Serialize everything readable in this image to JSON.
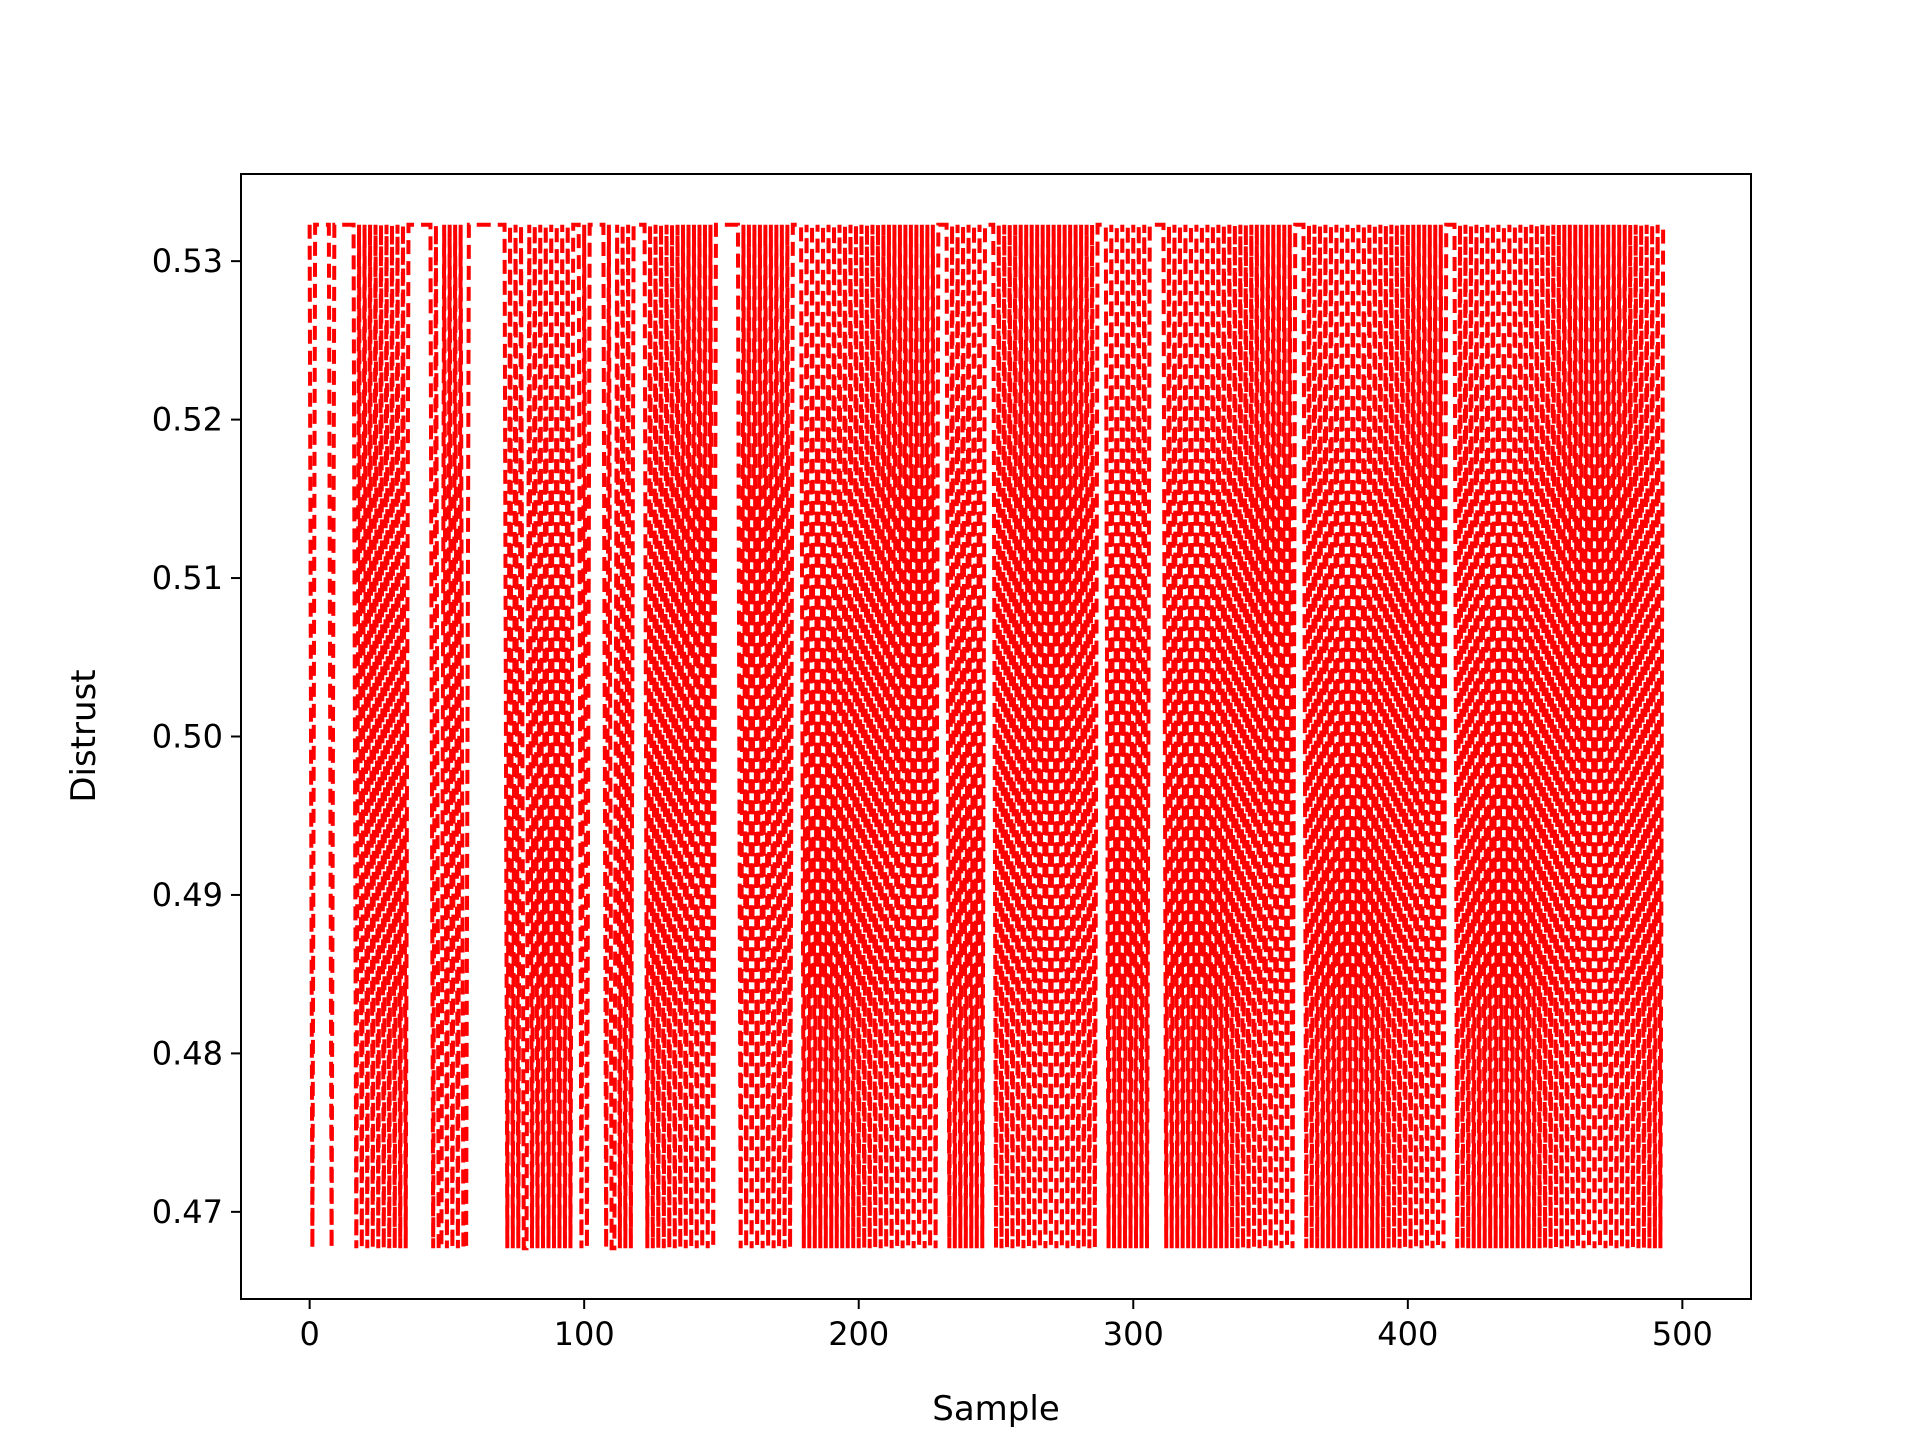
{
  "chart_data": {
    "type": "line",
    "title": "",
    "xlabel": "Sample",
    "ylabel": "Distrust",
    "xlim": [
      -25,
      525
    ],
    "ylim": [
      0.4645,
      0.5355
    ],
    "x_ticks": [
      0,
      100,
      200,
      300,
      400,
      500
    ],
    "x_tick_labels": [
      "0",
      "100",
      "200",
      "300",
      "400",
      "500"
    ],
    "y_ticks": [
      0.47,
      0.48,
      0.49,
      0.5,
      0.51,
      0.52,
      0.53
    ],
    "y_tick_labels": [
      "0.47",
      "0.48",
      "0.49",
      "0.50",
      "0.51",
      "0.52",
      "0.53"
    ],
    "grid": false,
    "legend": "none",
    "line_style": "dashed",
    "series": [
      {
        "color": "#ff0000",
        "x_start": 0,
        "x_step": 1,
        "low_value": 0.4677,
        "high_value": 0.5323,
        "states": [
          1,
          0,
          1,
          1,
          1,
          1,
          1,
          1,
          0,
          1,
          1,
          1,
          1,
          1,
          1,
          1,
          1,
          0,
          1,
          0,
          1,
          0,
          1,
          0,
          1,
          0,
          1,
          0,
          1,
          0,
          1,
          0,
          1,
          0,
          1,
          0,
          1,
          1,
          1,
          1,
          1,
          1,
          1,
          1,
          1,
          0,
          1,
          0,
          0,
          1,
          0,
          1,
          0,
          1,
          0,
          1,
          0,
          0,
          1,
          1,
          1,
          1,
          1,
          1,
          1,
          1,
          1,
          1,
          1,
          1,
          1,
          1,
          0,
          1,
          0,
          1,
          0,
          1,
          0,
          0,
          1,
          0,
          1,
          0,
          1,
          0,
          1,
          0,
          1,
          0,
          1,
          0,
          1,
          0,
          1,
          0,
          1,
          1,
          1,
          0,
          1,
          0,
          1,
          1,
          1,
          1,
          1,
          1,
          0,
          1,
          0,
          0,
          1,
          0,
          1,
          0,
          1,
          0,
          1,
          1,
          1,
          1,
          1,
          0,
          1,
          0,
          1,
          0,
          1,
          0,
          1,
          0,
          1,
          0,
          1,
          0,
          1,
          0,
          1,
          0,
          1,
          0,
          1,
          0,
          1,
          0,
          1,
          0,
          1,
          1,
          1,
          1,
          1,
          1,
          1,
          1,
          1,
          0,
          1,
          0,
          1,
          0,
          1,
          0,
          1,
          0,
          1,
          0,
          1,
          0,
          1,
          0,
          1,
          0,
          1,
          0,
          1,
          1,
          1,
          1,
          0,
          1,
          0,
          1,
          0,
          1,
          0,
          1,
          0,
          1,
          0,
          1,
          0,
          1,
          0,
          1,
          0,
          1,
          0,
          1,
          0,
          1,
          0,
          1,
          0,
          1,
          0,
          1,
          0,
          1,
          0,
          1,
          0,
          1,
          0,
          1,
          0,
          1,
          0,
          1,
          0,
          1,
          0,
          1,
          0,
          1,
          0,
          1,
          0,
          1,
          1,
          1,
          1,
          0,
          1,
          0,
          1,
          0,
          1,
          0,
          1,
          0,
          1,
          0,
          1,
          0,
          1,
          1,
          1,
          1,
          0,
          1,
          0,
          1,
          0,
          1,
          0,
          1,
          0,
          1,
          0,
          1,
          0,
          1,
          0,
          1,
          0,
          1,
          0,
          1,
          0,
          1,
          0,
          1,
          0,
          1,
          0,
          1,
          0,
          1,
          0,
          1,
          0,
          1,
          0,
          1,
          0,
          1,
          1,
          1,
          1,
          0,
          1,
          0,
          1,
          0,
          1,
          0,
          1,
          0,
          1,
          0,
          1,
          0,
          1,
          0,
          1,
          1,
          1,
          1,
          1,
          1,
          0,
          1,
          0,
          1,
          0,
          1,
          0,
          1,
          0,
          1,
          0,
          1,
          0,
          1,
          0,
          1,
          0,
          1,
          0,
          1,
          0,
          1,
          0,
          1,
          0,
          1,
          0,
          1,
          0,
          1,
          0,
          1,
          0,
          1,
          0,
          1,
          0,
          1,
          0,
          1,
          0,
          1,
          0,
          1,
          0,
          1,
          0,
          1,
          1,
          1,
          1,
          0,
          1,
          0,
          1,
          0,
          1,
          0,
          1,
          0,
          1,
          0,
          1,
          0,
          1,
          0,
          1,
          0,
          1,
          0,
          1,
          0,
          1,
          0,
          1,
          0,
          1,
          0,
          1,
          0,
          1,
          0,
          1,
          0,
          1,
          0,
          1,
          0,
          1,
          0,
          1,
          0,
          1,
          0,
          1,
          0,
          1,
          0,
          1,
          0,
          1,
          0,
          1,
          1,
          1,
          1,
          0,
          1,
          0,
          1,
          0,
          1,
          0,
          1,
          0,
          1,
          0,
          1,
          0,
          1,
          0,
          1,
          0,
          1,
          0,
          1,
          0,
          1,
          0,
          1,
          0,
          1,
          0,
          1,
          0,
          1,
          0,
          1,
          0,
          1,
          0,
          1,
          0,
          1,
          0,
          1,
          0,
          1,
          0,
          1,
          0,
          1,
          0,
          1,
          0,
          1,
          0,
          1,
          0,
          1,
          0,
          1,
          0,
          1,
          0,
          1,
          0,
          1,
          0,
          1,
          0,
          1,
          0,
          1,
          0,
          1,
          0,
          1,
          0,
          1,
          0,
          1
        ]
      }
    ]
  }
}
